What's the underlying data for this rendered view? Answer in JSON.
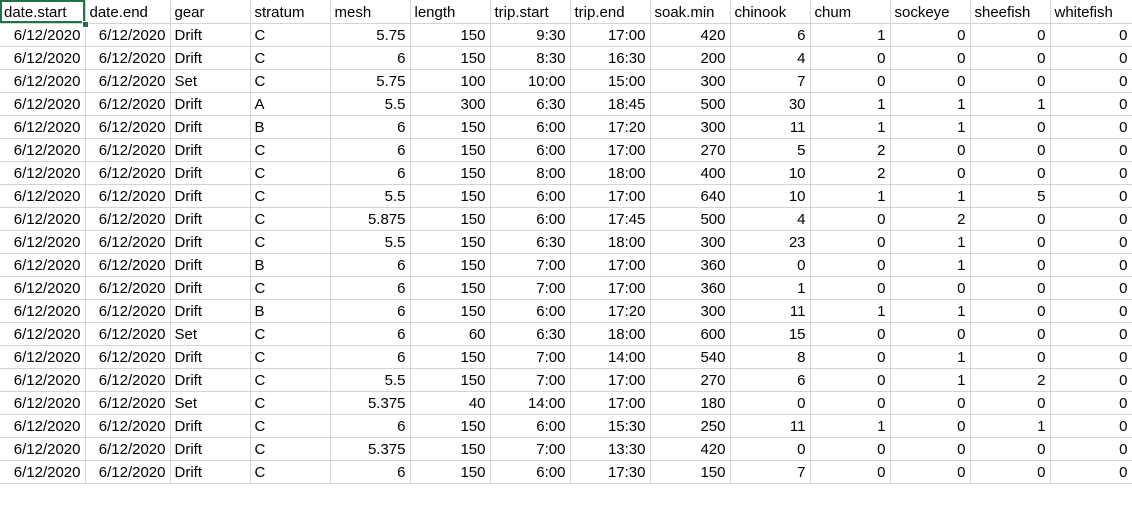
{
  "sheet": {
    "accent_color": "#217346",
    "gridline_color": "#d4d4d4",
    "selected_cell": "A1",
    "headers": [
      "date.start",
      "date.end",
      "gear",
      "stratum",
      "mesh",
      "length",
      "trip.start",
      "trip.end",
      "soak.min",
      "chinook",
      "chum",
      "sockeye",
      "sheefish",
      "whitefish"
    ],
    "rows": [
      [
        "6/12/2020",
        "6/12/2020",
        "Drift",
        "C",
        "5.75",
        "150",
        "9:30",
        "17:00",
        "420",
        "6",
        "1",
        "0",
        "0",
        "0"
      ],
      [
        "6/12/2020",
        "6/12/2020",
        "Drift",
        "C",
        "6",
        "150",
        "8:30",
        "16:30",
        "200",
        "4",
        "0",
        "0",
        "0",
        "0"
      ],
      [
        "6/12/2020",
        "6/12/2020",
        "Set",
        "C",
        "5.75",
        "100",
        "10:00",
        "15:00",
        "300",
        "7",
        "0",
        "0",
        "0",
        "0"
      ],
      [
        "6/12/2020",
        "6/12/2020",
        "Drift",
        "A",
        "5.5",
        "300",
        "6:30",
        "18:45",
        "500",
        "30",
        "1",
        "1",
        "1",
        "0"
      ],
      [
        "6/12/2020",
        "6/12/2020",
        "Drift",
        "B",
        "6",
        "150",
        "6:00",
        "17:20",
        "300",
        "11",
        "1",
        "1",
        "0",
        "0"
      ],
      [
        "6/12/2020",
        "6/12/2020",
        "Drift",
        "C",
        "6",
        "150",
        "6:00",
        "17:00",
        "270",
        "5",
        "2",
        "0",
        "0",
        "0"
      ],
      [
        "6/12/2020",
        "6/12/2020",
        "Drift",
        "C",
        "6",
        "150",
        "8:00",
        "18:00",
        "400",
        "10",
        "2",
        "0",
        "0",
        "0"
      ],
      [
        "6/12/2020",
        "6/12/2020",
        "Drift",
        "C",
        "5.5",
        "150",
        "6:00",
        "17:00",
        "640",
        "10",
        "1",
        "1",
        "5",
        "0"
      ],
      [
        "6/12/2020",
        "6/12/2020",
        "Drift",
        "C",
        "5.875",
        "150",
        "6:00",
        "17:45",
        "500",
        "4",
        "0",
        "2",
        "0",
        "0"
      ],
      [
        "6/12/2020",
        "6/12/2020",
        "Drift",
        "C",
        "5.5",
        "150",
        "6:30",
        "18:00",
        "300",
        "23",
        "0",
        "1",
        "0",
        "0"
      ],
      [
        "6/12/2020",
        "6/12/2020",
        "Drift",
        "B",
        "6",
        "150",
        "7:00",
        "17:00",
        "360",
        "0",
        "0",
        "1",
        "0",
        "0"
      ],
      [
        "6/12/2020",
        "6/12/2020",
        "Drift",
        "C",
        "6",
        "150",
        "7:00",
        "17:00",
        "360",
        "1",
        "0",
        "0",
        "0",
        "0"
      ],
      [
        "6/12/2020",
        "6/12/2020",
        "Drift",
        "B",
        "6",
        "150",
        "6:00",
        "17:20",
        "300",
        "11",
        "1",
        "1",
        "0",
        "0"
      ],
      [
        "6/12/2020",
        "6/12/2020",
        "Set",
        "C",
        "6",
        "60",
        "6:30",
        "18:00",
        "600",
        "15",
        "0",
        "0",
        "0",
        "0"
      ],
      [
        "6/12/2020",
        "6/12/2020",
        "Drift",
        "C",
        "6",
        "150",
        "7:00",
        "14:00",
        "540",
        "8",
        "0",
        "1",
        "0",
        "0"
      ],
      [
        "6/12/2020",
        "6/12/2020",
        "Drift",
        "C",
        "5.5",
        "150",
        "7:00",
        "17:00",
        "270",
        "6",
        "0",
        "1",
        "2",
        "0"
      ],
      [
        "6/12/2020",
        "6/12/2020",
        "Set",
        "C",
        "5.375",
        "40",
        "14:00",
        "17:00",
        "180",
        "0",
        "0",
        "0",
        "0",
        "0"
      ],
      [
        "6/12/2020",
        "6/12/2020",
        "Drift",
        "C",
        "6",
        "150",
        "6:00",
        "15:30",
        "250",
        "11",
        "1",
        "0",
        "1",
        "0"
      ],
      [
        "6/12/2020",
        "6/12/2020",
        "Drift",
        "C",
        "5.375",
        "150",
        "7:00",
        "13:30",
        "420",
        "0",
        "0",
        "0",
        "0",
        "0"
      ],
      [
        "6/12/2020",
        "6/12/2020",
        "Drift",
        "C",
        "6",
        "150",
        "6:00",
        "17:30",
        "150",
        "7",
        "0",
        "0",
        "0",
        "0"
      ]
    ]
  }
}
